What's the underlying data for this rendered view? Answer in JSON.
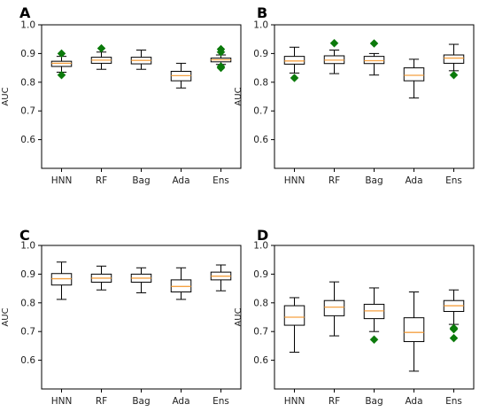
{
  "figure": {
    "outlier_color": "#0b7a0b",
    "median_color": "#f5a142",
    "box_color": "#000000"
  },
  "chart_data": [
    {
      "type": "box",
      "panel": "A",
      "ylabel": "AUC",
      "ylim": [
        0.5,
        1.0
      ],
      "yticks": [
        "0.6",
        "0.7",
        "0.8",
        "0.9",
        "1.0"
      ],
      "categories": [
        "HNN",
        "RF",
        "Bag",
        "Ada",
        "Ens"
      ],
      "boxes": [
        {
          "whisker_low": 0.835,
          "q1": 0.855,
          "median": 0.866,
          "q3": 0.873,
          "whisker_high": 0.89,
          "outliers": [
            0.9,
            0.825
          ]
        },
        {
          "whisker_low": 0.845,
          "q1": 0.866,
          "median": 0.877,
          "q3": 0.887,
          "whisker_high": 0.905,
          "outliers": [
            0.918
          ]
        },
        {
          "whisker_low": 0.845,
          "q1": 0.864,
          "median": 0.876,
          "q3": 0.887,
          "whisker_high": 0.912,
          "outliers": []
        },
        {
          "whisker_low": 0.78,
          "q1": 0.805,
          "median": 0.823,
          "q3": 0.838,
          "whisker_high": 0.866,
          "outliers": []
        },
        {
          "whisker_low": 0.862,
          "q1": 0.871,
          "median": 0.878,
          "q3": 0.884,
          "whisker_high": 0.895,
          "outliers": [
            0.915,
            0.905,
            0.855,
            0.85
          ]
        }
      ]
    },
    {
      "type": "box",
      "panel": "B",
      "ylabel": "AUC",
      "ylim": [
        0.5,
        1.0
      ],
      "yticks": [
        "0.6",
        "0.7",
        "0.8",
        "0.9",
        "1.0"
      ],
      "categories": [
        "HNN",
        "RF",
        "Bag",
        "Ada",
        "Ens"
      ],
      "boxes": [
        {
          "whisker_low": 0.832,
          "q1": 0.863,
          "median": 0.874,
          "q3": 0.89,
          "whisker_high": 0.922,
          "outliers": [
            0.815
          ]
        },
        {
          "whisker_low": 0.83,
          "q1": 0.865,
          "median": 0.877,
          "q3": 0.892,
          "whisker_high": 0.912,
          "outliers": [
            0.936
          ]
        },
        {
          "whisker_low": 0.825,
          "q1": 0.865,
          "median": 0.875,
          "q3": 0.89,
          "whisker_high": 0.9,
          "outliers": [
            0.935
          ]
        },
        {
          "whisker_low": 0.745,
          "q1": 0.805,
          "median": 0.824,
          "q3": 0.85,
          "whisker_high": 0.88,
          "outliers": []
        },
        {
          "whisker_low": 0.84,
          "q1": 0.866,
          "median": 0.884,
          "q3": 0.895,
          "whisker_high": 0.932,
          "outliers": [
            0.825
          ]
        }
      ]
    },
    {
      "type": "box",
      "panel": "C",
      "ylabel": "AUC",
      "ylim": [
        0.5,
        1.0
      ],
      "yticks": [
        "0.6",
        "0.7",
        "0.8",
        "0.9",
        "1.0"
      ],
      "categories": [
        "HNN",
        "RF",
        "Bag",
        "Ada",
        "Ens"
      ],
      "boxes": [
        {
          "whisker_low": 0.812,
          "q1": 0.862,
          "median": 0.884,
          "q3": 0.902,
          "whisker_high": 0.942,
          "outliers": []
        },
        {
          "whisker_low": 0.845,
          "q1": 0.872,
          "median": 0.886,
          "q3": 0.9,
          "whisker_high": 0.928,
          "outliers": []
        },
        {
          "whisker_low": 0.835,
          "q1": 0.872,
          "median": 0.886,
          "q3": 0.9,
          "whisker_high": 0.922,
          "outliers": []
        },
        {
          "whisker_low": 0.812,
          "q1": 0.838,
          "median": 0.857,
          "q3": 0.88,
          "whisker_high": 0.922,
          "outliers": []
        },
        {
          "whisker_low": 0.842,
          "q1": 0.88,
          "median": 0.893,
          "q3": 0.907,
          "whisker_high": 0.932,
          "outliers": []
        }
      ]
    },
    {
      "type": "box",
      "panel": "D",
      "ylabel": "AUC",
      "ylim": [
        0.5,
        1.0
      ],
      "yticks": [
        "0.6",
        "0.7",
        "0.8",
        "0.9",
        "1.0"
      ],
      "categories": [
        "HNN",
        "RF",
        "Bag",
        "Ada",
        "Ens"
      ],
      "boxes": [
        {
          "whisker_low": 0.628,
          "q1": 0.722,
          "median": 0.75,
          "q3": 0.79,
          "whisker_high": 0.818,
          "outliers": []
        },
        {
          "whisker_low": 0.685,
          "q1": 0.755,
          "median": 0.785,
          "q3": 0.808,
          "whisker_high": 0.873,
          "outliers": []
        },
        {
          "whisker_low": 0.7,
          "q1": 0.745,
          "median": 0.772,
          "q3": 0.795,
          "whisker_high": 0.852,
          "outliers": [
            0.672
          ]
        },
        {
          "whisker_low": 0.562,
          "q1": 0.665,
          "median": 0.697,
          "q3": 0.748,
          "whisker_high": 0.838,
          "outliers": []
        },
        {
          "whisker_low": 0.725,
          "q1": 0.77,
          "median": 0.79,
          "q3": 0.808,
          "whisker_high": 0.845,
          "outliers": [
            0.712,
            0.708,
            0.677
          ]
        }
      ]
    }
  ]
}
